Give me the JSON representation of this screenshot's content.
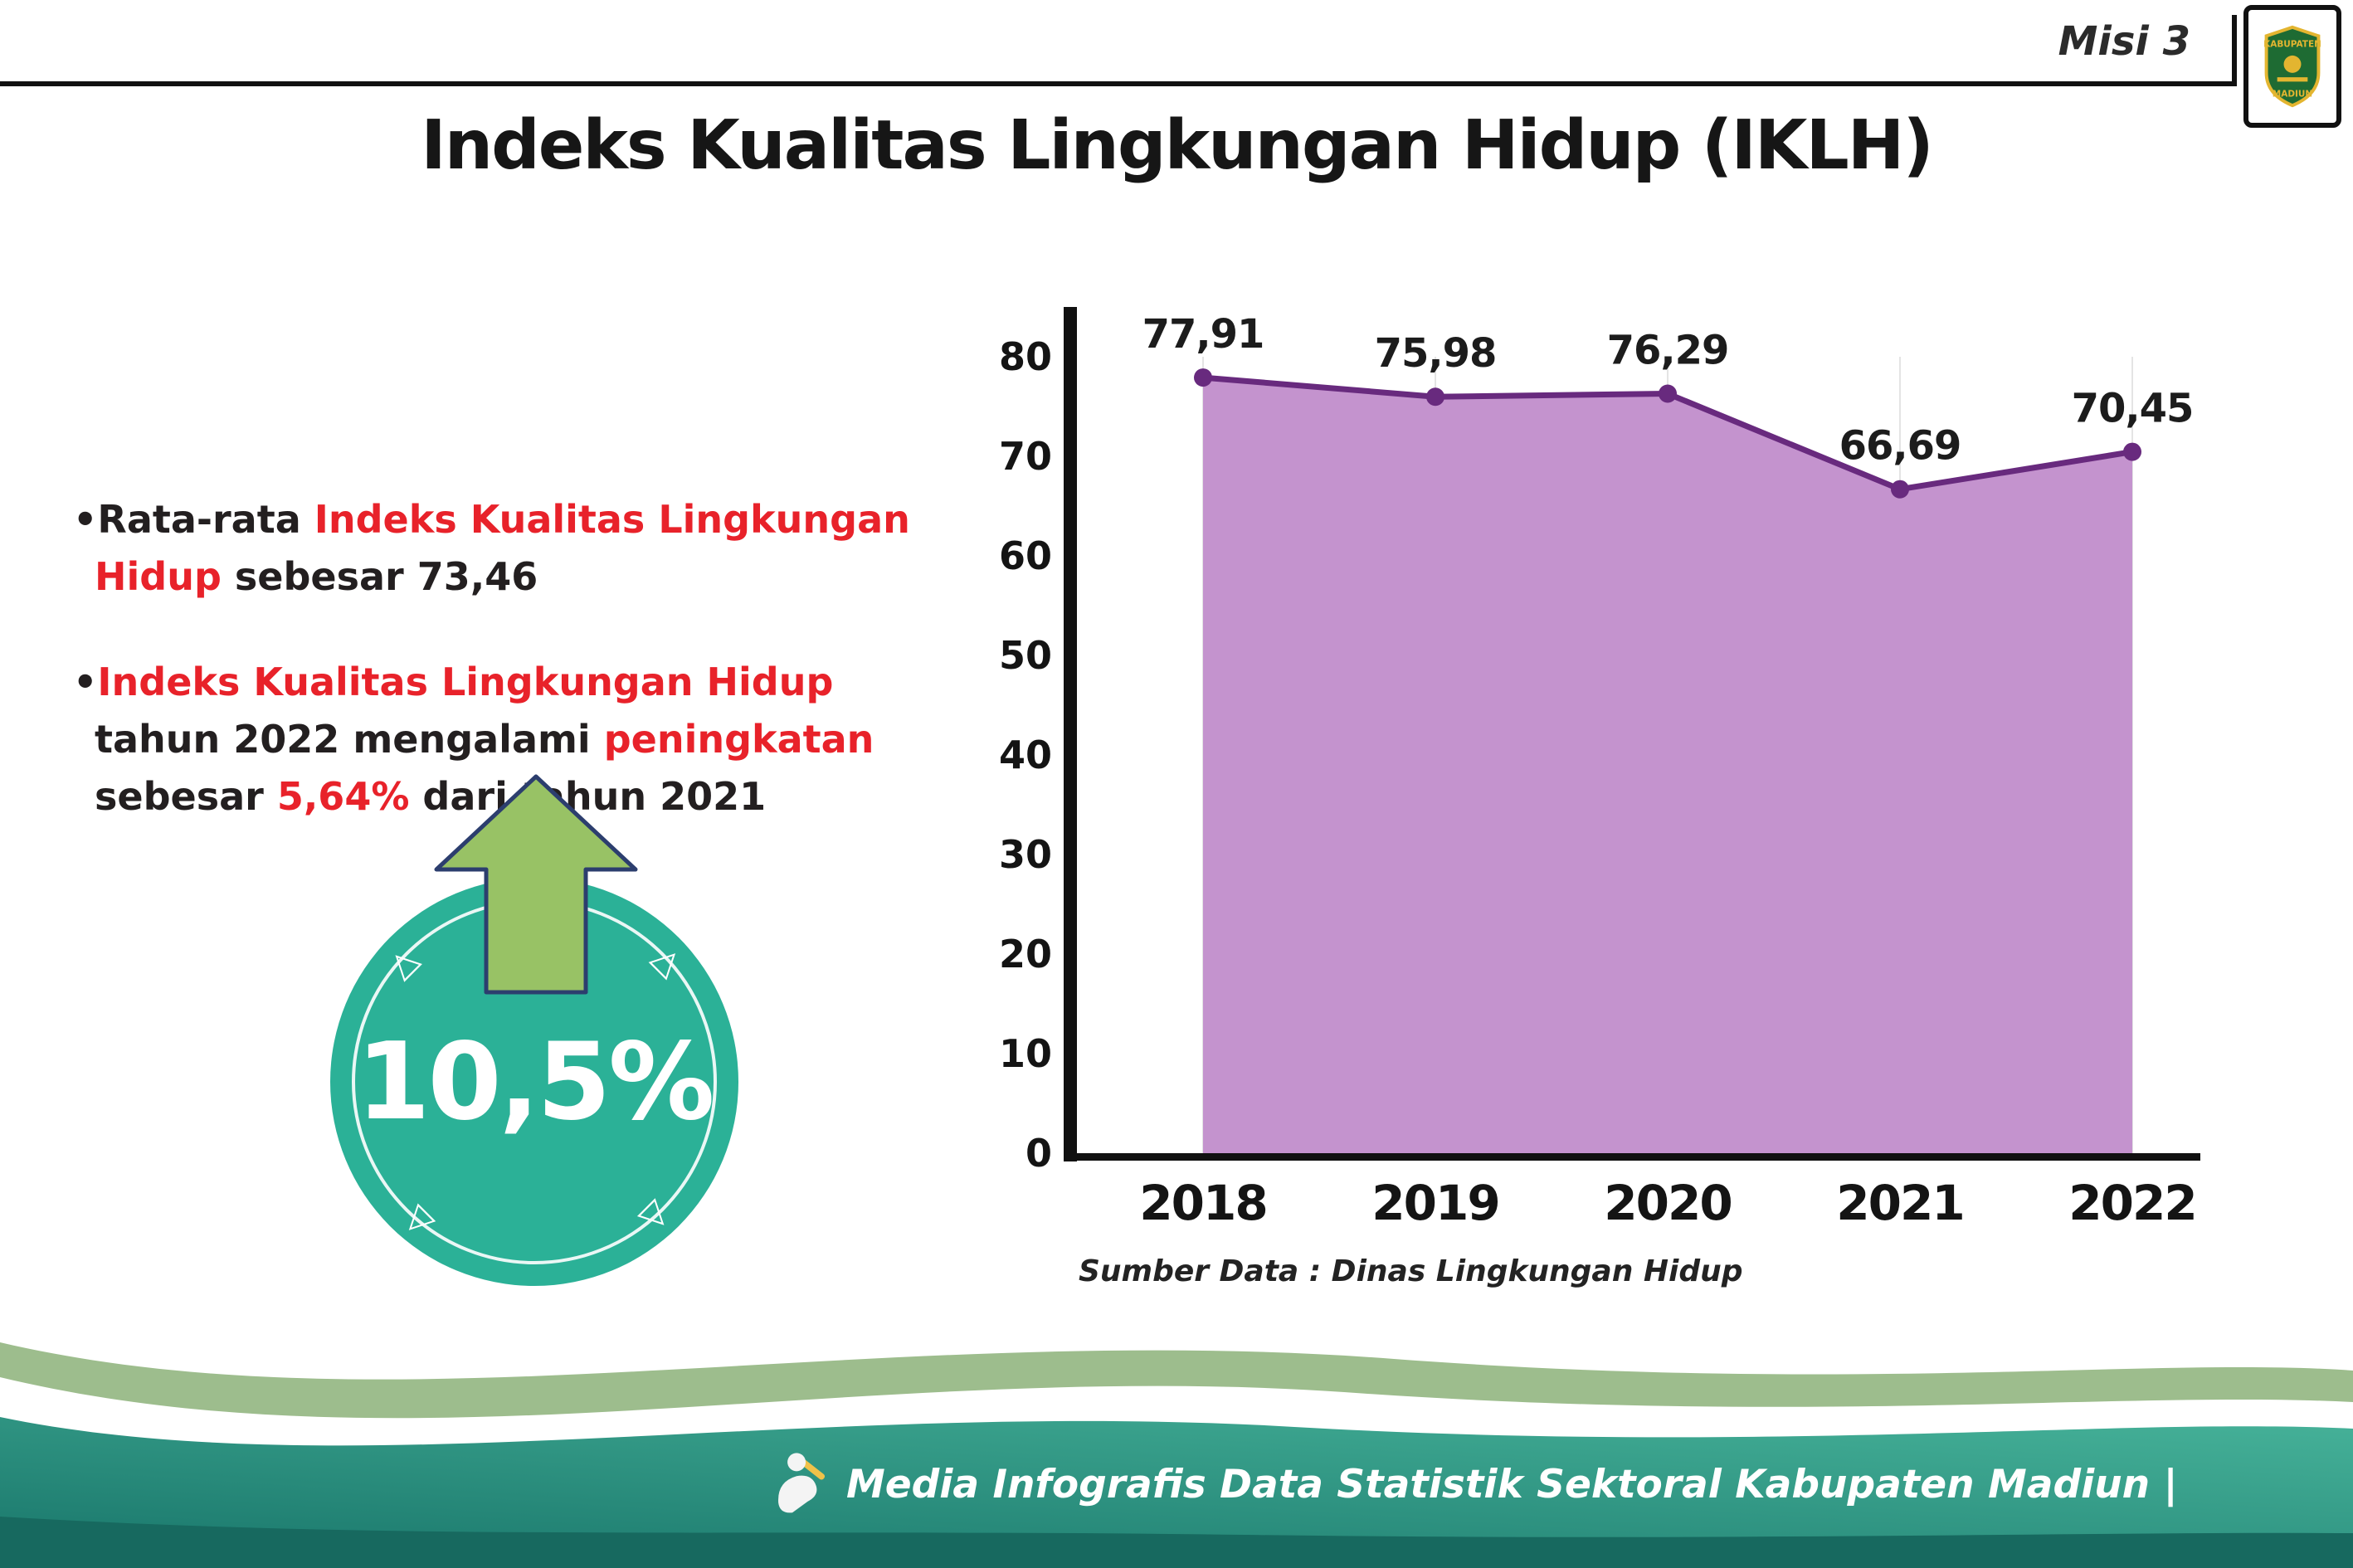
{
  "header": {
    "misi_label": "Misi 3",
    "title": "Indeks Kualitas Lingkungan Hidup (IKLH)"
  },
  "logo": {
    "top_text": "KABUPATEN",
    "bottom_text": "MADIUN"
  },
  "bullets": {
    "dot": "•",
    "b1_p1": "Rata-rata ",
    "b1_p2": "Indeks Kualitas Lingkungan Hidup",
    "b1_p3": " sebesar 73,46",
    "b2_p1": "Indeks Kualitas Lingkungan Hidup",
    "b2_p2": " tahun 2022 mengalami ",
    "b2_p3": "peningkatan",
    "b2_p4": " sebesar ",
    "b2_p5": "5,64%",
    "b2_p6": " dari tahun 2021"
  },
  "badge": {
    "value": "10,5%"
  },
  "chart_data": {
    "type": "area",
    "title": "Indeks Kualitas Lingkungan Hidup (IKLH)",
    "categories": [
      "2018",
      "2019",
      "2020",
      "2021",
      "2022"
    ],
    "values": [
      77.91,
      75.98,
      76.29,
      66.69,
      70.45
    ],
    "value_labels": [
      "77,91",
      "75,98",
      "76,29",
      "66,69",
      "70,45"
    ],
    "ylim": [
      0,
      80
    ],
    "ytick_step": 10,
    "grid": "vertical-light",
    "legend": "none",
    "source_note": "Sumber Data : Dinas Lingkungan Hidup",
    "colors": {
      "fill": "#c493ce",
      "line": "#682a7e",
      "marker": "#682a7e",
      "axis": "#111111",
      "grid": "#e4e4e4"
    }
  },
  "footer": {
    "text": "Media Infografis Data Statistik Sektoral Kabupaten Madiun |"
  },
  "colors": {
    "red": "#e8222a",
    "dark": "#231f20",
    "teal_badge": "#2bb197",
    "arrow_green": "#98c265"
  }
}
